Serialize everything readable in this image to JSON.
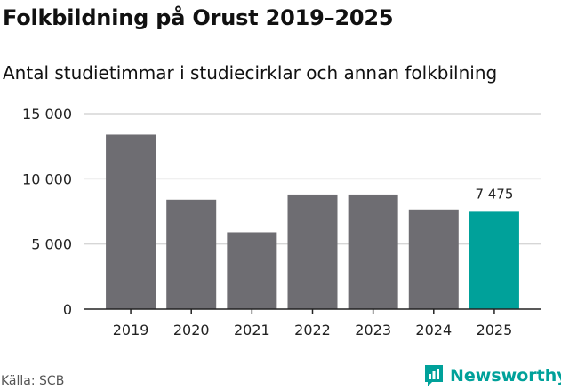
{
  "header": {
    "title": "Folkbildning på Orust 2019–2025",
    "subtitle": "Antal studietimmar i studiecirklar och annan folkbilning"
  },
  "footer": {
    "source": "Källa: SCB",
    "brand": "Newsworthy",
    "brand_icon": "newsworthy-logo-icon"
  },
  "colors": {
    "bar": "#6e6d72",
    "highlight": "#00a19a",
    "grid": "#d6d6d6",
    "axis": "#222222"
  },
  "chart_data": {
    "type": "bar",
    "categories": [
      "2019",
      "2020",
      "2021",
      "2022",
      "2023",
      "2024",
      "2025"
    ],
    "values": [
      13400,
      8400,
      5900,
      8800,
      8800,
      7650,
      7475
    ],
    "highlight_index": 6,
    "data_labels": [
      {
        "index": 6,
        "text": "7 475"
      }
    ],
    "y_ticks": [
      {
        "value": 0,
        "label": "0"
      },
      {
        "value": 5000,
        "label": "5 000"
      },
      {
        "value": 10000,
        "label": "10 000"
      },
      {
        "value": 15000,
        "label": "15 000"
      }
    ],
    "ylim": [
      0,
      15000
    ],
    "grid": true,
    "title": "",
    "xlabel": "",
    "ylabel": ""
  }
}
